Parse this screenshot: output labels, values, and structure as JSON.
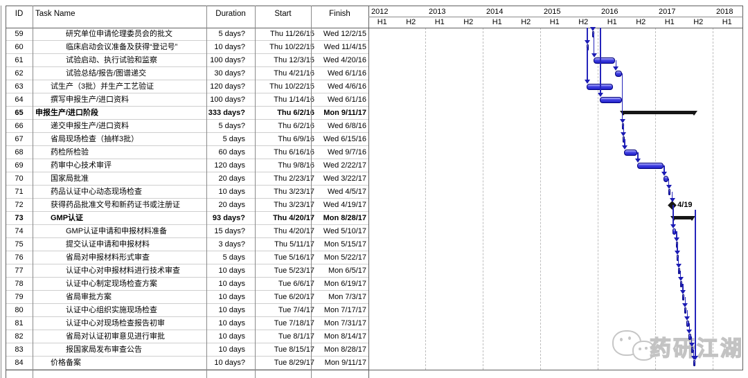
{
  "app": {
    "view": "gantt-project-view"
  },
  "colors": {
    "task_bar_blue": "#2121c8",
    "summary_black": "#161616",
    "link_blue": "#2424bb",
    "grid_gray": "#8a8a8a",
    "row_line_gray": "#cfcfcf",
    "watermark_gray": "#c3c3c3"
  },
  "table": {
    "headers": {
      "id": "ID",
      "task": "Task Name",
      "duration": "Duration",
      "start": "Start",
      "finish": "Finish"
    },
    "rows": [
      {
        "id": "59",
        "name": "研究单位申请伦理委员会的批文",
        "indent": 3,
        "duration": "5 days?",
        "start": "Thu 11/26/15",
        "finish": "Wed 12/2/15",
        "bold": false,
        "bar": "task"
      },
      {
        "id": "60",
        "name": "临床启动会议准备及获得“登记号”",
        "indent": 3,
        "duration": "10 days?",
        "start": "Thu 10/22/15",
        "finish": "Wed 11/4/15",
        "bold": false,
        "bar": "task"
      },
      {
        "id": "61",
        "name": "试验启动、执行试验和监察",
        "indent": 3,
        "duration": "100 days?",
        "start": "Thu 12/3/15",
        "finish": "Wed 4/20/16",
        "bold": false,
        "bar": "task"
      },
      {
        "id": "62",
        "name": "试验总结/报告/图谱递交",
        "indent": 3,
        "duration": "30 days?",
        "start": "Thu 4/21/16",
        "finish": "Wed 6/1/16",
        "bold": false,
        "bar": "task"
      },
      {
        "id": "63",
        "name": "试生产（3批）并生产工艺验证",
        "indent": 2,
        "duration": "120 days?",
        "start": "Thu 10/22/15",
        "finish": "Wed 4/6/16",
        "bold": false,
        "bar": "task"
      },
      {
        "id": "64",
        "name": "撰写申报生产/进口资料",
        "indent": 2,
        "duration": "100 days?",
        "start": "Thu 1/14/16",
        "finish": "Wed 6/1/16",
        "bold": false,
        "bar": "task"
      },
      {
        "id": "65",
        "name": "申报生产/进口阶段",
        "indent": 1,
        "duration": "333 days?",
        "start": "Thu 6/2/16",
        "finish": "Mon 9/11/17",
        "bold": true,
        "bar": "summary"
      },
      {
        "id": "66",
        "name": "递交申报生产/进口资料",
        "indent": 2,
        "duration": "5 days?",
        "start": "Thu 6/2/16",
        "finish": "Wed 6/8/16",
        "bold": false,
        "bar": "task"
      },
      {
        "id": "67",
        "name": "省局现场检查（抽样3批）",
        "indent": 2,
        "duration": "5 days",
        "start": "Thu 6/9/16",
        "finish": "Wed 6/15/16",
        "bold": false,
        "bar": "task"
      },
      {
        "id": "68",
        "name": "药检所检验",
        "indent": 2,
        "duration": "60 days",
        "start": "Thu 6/16/16",
        "finish": "Wed 9/7/16",
        "bold": false,
        "bar": "task"
      },
      {
        "id": "69",
        "name": "药审中心技术审评",
        "indent": 2,
        "duration": "120 days",
        "start": "Thu 9/8/16",
        "finish": "Wed 2/22/17",
        "bold": false,
        "bar": "task"
      },
      {
        "id": "70",
        "name": "国家局批准",
        "indent": 2,
        "duration": "20 days",
        "start": "Thu 2/23/17",
        "finish": "Wed 3/22/17",
        "bold": false,
        "bar": "task"
      },
      {
        "id": "71",
        "name": "药品认证中心动态现场检查",
        "indent": 2,
        "duration": "10 days",
        "start": "Thu 3/23/17",
        "finish": "Wed 4/5/17",
        "bold": false,
        "bar": "task"
      },
      {
        "id": "72",
        "name": "获得药品批准文号和新药证书或注册证",
        "indent": 2,
        "duration": "20 days",
        "start": "Thu 3/23/17",
        "finish": "Wed 4/19/17",
        "bold": false,
        "bar": "milestone"
      },
      {
        "id": "73",
        "name": "GMP认证",
        "indent": 2,
        "duration": "93 days?",
        "start": "Thu 4/20/17",
        "finish": "Mon 8/28/17",
        "bold": true,
        "bar": "summary"
      },
      {
        "id": "74",
        "name": "GMP认证申请和申报材料准备",
        "indent": 3,
        "duration": "15 days?",
        "start": "Thu 4/20/17",
        "finish": "Wed 5/10/17",
        "bold": false,
        "bar": "task"
      },
      {
        "id": "75",
        "name": "提交认证申请和申报材料",
        "indent": 3,
        "duration": "3 days?",
        "start": "Thu 5/11/17",
        "finish": "Mon 5/15/17",
        "bold": false,
        "bar": "task"
      },
      {
        "id": "76",
        "name": "省局对申报材料形式审查",
        "indent": 3,
        "duration": "5 days",
        "start": "Tue 5/16/17",
        "finish": "Mon 5/22/17",
        "bold": false,
        "bar": "task"
      },
      {
        "id": "77",
        "name": "认证中心对申报材料进行技术审查",
        "indent": 3,
        "duration": "10 days",
        "start": "Tue 5/23/17",
        "finish": "Mon 6/5/17",
        "bold": false,
        "bar": "task"
      },
      {
        "id": "78",
        "name": "认证中心制定现场检查方案",
        "indent": 3,
        "duration": "10 days",
        "start": "Tue 6/6/17",
        "finish": "Mon 6/19/17",
        "bold": false,
        "bar": "task"
      },
      {
        "id": "79",
        "name": "省局审批方案",
        "indent": 3,
        "duration": "10 days",
        "start": "Tue 6/20/17",
        "finish": "Mon 7/3/17",
        "bold": false,
        "bar": "task"
      },
      {
        "id": "80",
        "name": "认证中心组织实施现场检查",
        "indent": 3,
        "duration": "10 days",
        "start": "Tue 7/4/17",
        "finish": "Mon 7/17/17",
        "bold": false,
        "bar": "task"
      },
      {
        "id": "81",
        "name": "认证中心对现场检查报告初审",
        "indent": 3,
        "duration": "10 days",
        "start": "Tue 7/18/17",
        "finish": "Mon 7/31/17",
        "bold": false,
        "bar": "task"
      },
      {
        "id": "82",
        "name": "省局对认证初审意见进行审批",
        "indent": 3,
        "duration": "10 days",
        "start": "Tue 8/1/17",
        "finish": "Mon 8/14/17",
        "bold": false,
        "bar": "task"
      },
      {
        "id": "83",
        "name": "报国家局发布审查公告",
        "indent": 3,
        "duration": "10 days",
        "start": "Tue 8/15/17",
        "finish": "Mon 8/28/17",
        "bold": false,
        "bar": "task"
      },
      {
        "id": "84",
        "name": "价格备案",
        "indent": 2,
        "duration": "10 days?",
        "start": "Tue 8/29/17",
        "finish": "Mon 9/11/17",
        "bold": false,
        "bar": "task"
      }
    ]
  },
  "timeline": {
    "years": [
      {
        "label": "2012",
        "halves": [
          "H1",
          "H2"
        ]
      },
      {
        "label": "2013",
        "halves": [
          "H1",
          "H2"
        ]
      },
      {
        "label": "2014",
        "halves": [
          "H1",
          "H2"
        ]
      },
      {
        "label": "2015",
        "halves": [
          "H1",
          "H2"
        ]
      },
      {
        "label": "2016",
        "halves": [
          "H1",
          "H2"
        ]
      },
      {
        "label": "2017",
        "halves": [
          "H1",
          "H2"
        ]
      },
      {
        "label": "2018",
        "halves": [
          "H1"
        ]
      }
    ]
  },
  "gantt": {
    "milestone_label": "4/19"
  },
  "watermark": {
    "text": "药研江湖"
  }
}
